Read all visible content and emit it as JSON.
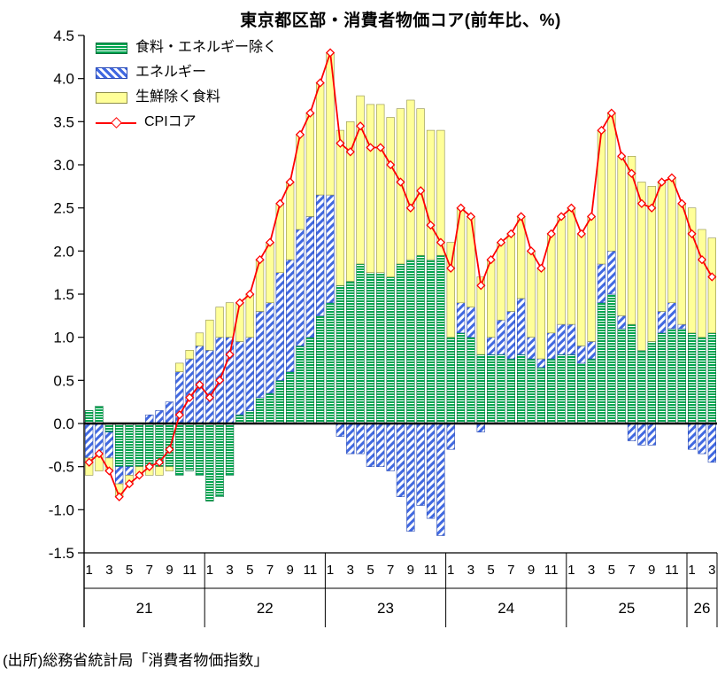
{
  "title": "東京都区部・消費者物価コア(前年比、%)",
  "source": "(出所)総務省統計局「消費者物価指数」",
  "legend": {
    "items": [
      {
        "label": "食料・エネルギー除く"
      },
      {
        "label": "エネルギー"
      },
      {
        "label": "生鮮除く食料"
      },
      {
        "label": "CPIコア"
      }
    ],
    "position": "upper-left"
  },
  "colors": {
    "ex_food_energy": "#00a651",
    "energy": "#4169e1",
    "food_ex_fresh": "#ffff99",
    "cpi_core_line": "#ff0000",
    "axis": "#000000"
  },
  "chart_data": {
    "type": "bar",
    "subtype": "stacked-bar-with-line",
    "title": "東京都区部・消費者物価コア(前年比、%)",
    "xlabel": "",
    "ylabel": "",
    "ylim": [
      -1.5,
      4.5
    ],
    "y_tick_step": 0.5,
    "grid": false,
    "month_ticks_shown": [
      "1",
      "3",
      "5",
      "7",
      "9",
      "11"
    ],
    "years": [
      {
        "label": "21",
        "months": 12
      },
      {
        "label": "22",
        "months": 12
      },
      {
        "label": "23",
        "months": 12
      },
      {
        "label": "24",
        "months": 12
      },
      {
        "label": "25",
        "months": 12
      },
      {
        "label": "26",
        "months": 3
      }
    ],
    "categories": [
      "21-1",
      "21-2",
      "21-3",
      "21-4",
      "21-5",
      "21-6",
      "21-7",
      "21-8",
      "21-9",
      "21-10",
      "21-11",
      "21-12",
      "22-1",
      "22-2",
      "22-3",
      "22-4",
      "22-5",
      "22-6",
      "22-7",
      "22-8",
      "22-9",
      "22-10",
      "22-11",
      "22-12",
      "23-1",
      "23-2",
      "23-3",
      "23-4",
      "23-5",
      "23-6",
      "23-7",
      "23-8",
      "23-9",
      "23-10",
      "23-11",
      "23-12",
      "24-1",
      "24-2",
      "24-3",
      "24-4",
      "24-5",
      "24-6",
      "24-7",
      "24-8",
      "24-9",
      "24-10",
      "24-11",
      "24-12",
      "25-1",
      "25-2",
      "25-3",
      "25-4",
      "25-5",
      "25-6",
      "25-7",
      "25-8",
      "25-9",
      "25-10",
      "25-11",
      "25-12",
      "26-1",
      "26-2",
      "26-3"
    ],
    "series": [
      {
        "name": "食料・エネルギー除く",
        "type": "bar",
        "pattern": "horizontal-stripes-green",
        "values": [
          0.15,
          0.2,
          -0.1,
          -0.5,
          -0.5,
          -0.5,
          -0.5,
          -0.5,
          -0.5,
          -0.6,
          -0.55,
          -0.6,
          -0.9,
          -0.85,
          -0.6,
          0.1,
          0.15,
          0.3,
          0.35,
          0.5,
          0.6,
          0.9,
          1.0,
          1.25,
          1.4,
          1.6,
          1.65,
          1.85,
          1.75,
          1.75,
          1.7,
          1.85,
          1.9,
          1.95,
          1.9,
          1.95,
          1.0,
          1.05,
          1.0,
          0.8,
          0.8,
          0.8,
          0.75,
          0.8,
          0.75,
          0.65,
          0.75,
          0.8,
          0.8,
          0.7,
          0.75,
          1.4,
          1.5,
          1.1,
          1.15,
          0.85,
          0.95,
          1.05,
          1.1,
          1.1,
          1.05,
          1.0,
          1.05
        ]
      },
      {
        "name": "エネルギー",
        "type": "bar",
        "pattern": "diagonal-stripes-blue",
        "values": [
          -0.4,
          -0.35,
          -0.3,
          -0.2,
          -0.1,
          0.0,
          0.1,
          0.15,
          0.25,
          0.6,
          0.75,
          0.9,
          0.85,
          1.0,
          1.0,
          0.85,
          0.85,
          1.0,
          1.05,
          1.25,
          1.3,
          1.35,
          1.4,
          1.4,
          1.25,
          -0.15,
          -0.35,
          -0.35,
          -0.5,
          -0.5,
          -0.55,
          -0.85,
          -1.25,
          -0.95,
          -1.1,
          -1.3,
          -0.3,
          0.35,
          0.35,
          -0.1,
          0.2,
          0.4,
          0.55,
          0.65,
          0.25,
          0.1,
          0.3,
          0.35,
          0.35,
          0.2,
          0.2,
          0.45,
          0.5,
          0.15,
          -0.2,
          -0.25,
          -0.25,
          0.25,
          0.3,
          0.05,
          -0.3,
          -0.35,
          -0.45
        ]
      },
      {
        "name": "生鮮除く食料",
        "type": "bar",
        "pattern": "solid-yellow",
        "values": [
          -0.2,
          -0.2,
          -0.15,
          -0.15,
          -0.1,
          -0.1,
          -0.1,
          -0.1,
          -0.05,
          0.1,
          0.1,
          0.15,
          0.35,
          0.35,
          0.4,
          0.45,
          0.5,
          0.6,
          0.7,
          0.8,
          0.9,
          1.1,
          1.2,
          1.3,
          1.65,
          1.8,
          1.85,
          1.95,
          1.95,
          1.95,
          1.85,
          1.8,
          1.85,
          1.7,
          1.5,
          1.45,
          1.1,
          1.1,
          1.05,
          0.9,
          0.9,
          0.9,
          0.9,
          0.95,
          1.0,
          1.05,
          1.15,
          1.25,
          1.35,
          1.3,
          1.45,
          1.55,
          1.6,
          1.85,
          1.95,
          1.95,
          1.8,
          1.5,
          1.45,
          1.4,
          1.45,
          1.25,
          1.1
        ]
      },
      {
        "name": "CPIコア",
        "type": "line",
        "marker": "diamond-open",
        "values": [
          -0.45,
          -0.35,
          -0.55,
          -0.85,
          -0.7,
          -0.6,
          -0.5,
          -0.45,
          -0.3,
          0.1,
          0.3,
          0.45,
          0.3,
          0.5,
          0.8,
          1.4,
          1.5,
          1.9,
          2.1,
          2.55,
          2.8,
          3.35,
          3.6,
          3.95,
          4.3,
          3.25,
          3.15,
          3.45,
          3.2,
          3.2,
          3.0,
          2.8,
          2.5,
          2.7,
          2.3,
          2.1,
          1.8,
          2.5,
          2.4,
          1.6,
          1.9,
          2.1,
          2.2,
          2.4,
          2.0,
          1.8,
          2.2,
          2.4,
          2.5,
          2.2,
          2.4,
          3.4,
          3.6,
          3.1,
          2.9,
          2.55,
          2.5,
          2.8,
          2.85,
          2.55,
          2.2,
          1.9,
          1.7
        ]
      }
    ]
  }
}
